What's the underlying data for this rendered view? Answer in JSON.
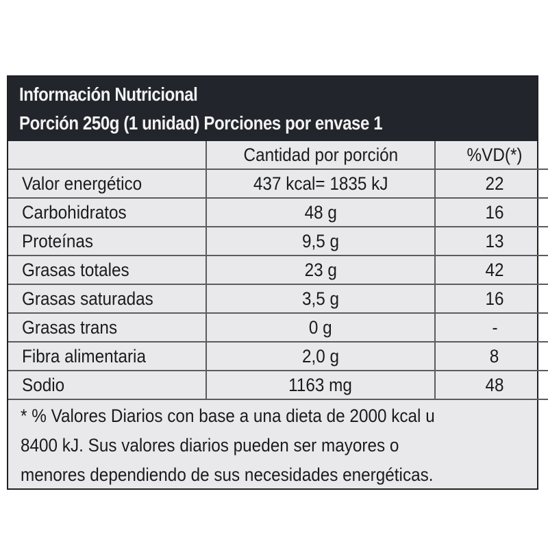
{
  "header": {
    "title": "Información Nutricional",
    "portion": "Porción 250g (1 unidad) Porciones por envase 1"
  },
  "table": {
    "columns": [
      "",
      "Cantidad por porción",
      "%VD(*)"
    ],
    "rows": [
      {
        "name": "Valor energético",
        "amount": "437 kcal= 1835 kJ",
        "dv": "22"
      },
      {
        "name": "Carbohidratos",
        "amount": "48 g",
        "dv": "16"
      },
      {
        "name": "Proteínas",
        "amount": "9,5 g",
        "dv": "13"
      },
      {
        "name": "Grasas totales",
        "amount": "23 g",
        "dv": "42"
      },
      {
        "name": "Grasas saturadas",
        "amount": "3,5 g",
        "dv": "16"
      },
      {
        "name": "Grasas trans",
        "amount": "0 g",
        "dv": "-"
      },
      {
        "name": "Fibra alimentaria",
        "amount": "2,0 g",
        "dv": "8"
      },
      {
        "name": "Sodio",
        "amount": "1163 mg",
        "dv": "48"
      }
    ]
  },
  "footnote": {
    "lines": [
      "* % Valores Diarios con base a una dieta de 2000 kcal u",
      "8400 kJ. Sus valores diarios pueden ser mayores o",
      "menores dependiendo de sus necesidades energéticas."
    ]
  },
  "colors": {
    "header_background": "#22252b",
    "header_text": "#f2f2f2",
    "label_background": "#e9e9ec",
    "text": "#1a1b1f",
    "grid_lines": "#5a5b60"
  }
}
